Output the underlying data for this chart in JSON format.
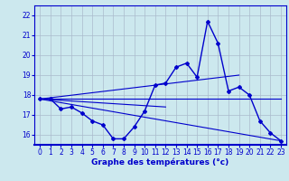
{
  "title": "Graphe des températures (°c)",
  "bg_color": "#cce8ee",
  "line_color": "#0000cc",
  "grid_color": "#aabbcc",
  "xlim": [
    -0.5,
    23.5
  ],
  "ylim": [
    15.5,
    22.5
  ],
  "yticks": [
    16,
    17,
    18,
    19,
    20,
    21,
    22
  ],
  "xticks": [
    0,
    1,
    2,
    3,
    4,
    5,
    6,
    7,
    8,
    9,
    10,
    11,
    12,
    13,
    14,
    15,
    16,
    17,
    18,
    19,
    20,
    21,
    22,
    23
  ],
  "main_series": {
    "x": [
      0,
      1,
      2,
      3,
      4,
      5,
      6,
      7,
      8,
      9,
      10,
      11,
      12,
      13,
      14,
      15,
      16,
      17,
      18,
      19,
      20,
      21,
      22,
      23
    ],
    "y": [
      17.8,
      17.8,
      17.3,
      17.4,
      17.1,
      16.7,
      16.5,
      15.8,
      15.8,
      16.4,
      17.2,
      18.5,
      18.6,
      19.4,
      19.6,
      18.9,
      21.7,
      20.6,
      18.2,
      18.4,
      18.0,
      16.7,
      16.1,
      15.7
    ]
  },
  "trend_lines": [
    {
      "x": [
        0,
        23
      ],
      "y": [
        17.8,
        17.8
      ]
    },
    {
      "x": [
        0,
        19
      ],
      "y": [
        17.8,
        19.0
      ]
    },
    {
      "x": [
        0,
        23
      ],
      "y": [
        17.8,
        15.7
      ]
    },
    {
      "x": [
        0,
        12
      ],
      "y": [
        17.8,
        17.4
      ]
    }
  ]
}
